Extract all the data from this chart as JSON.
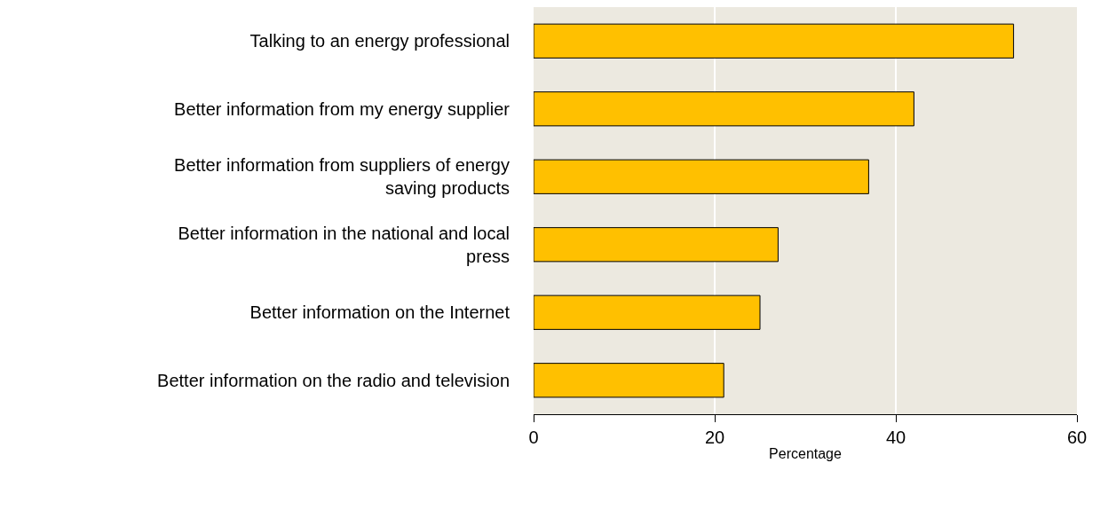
{
  "chart_data": {
    "type": "bar",
    "orientation": "horizontal",
    "xlabel": "Percentage",
    "categories": [
      "Talking to an energy professional",
      "Better information from my energy supplier",
      "Better information from suppliers of energy saving products",
      "Better information in the national and local press",
      "Better information on the Internet",
      "Better information on the radio and television"
    ],
    "values": [
      53,
      42,
      37,
      27,
      25,
      21
    ],
    "color": "#ffc000",
    "xlim": [
      0,
      60
    ],
    "xticks": [
      0,
      20,
      40,
      60
    ],
    "grid": "x"
  }
}
